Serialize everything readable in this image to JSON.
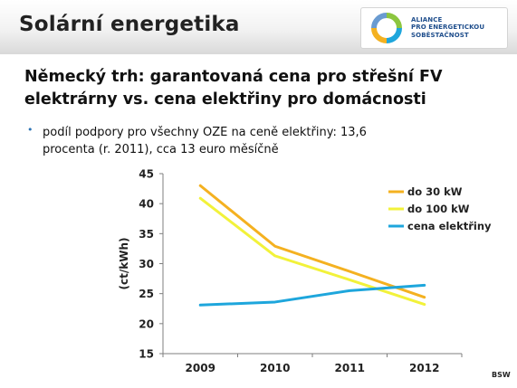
{
  "header": {
    "title": "Solární energetika"
  },
  "logo": {
    "lines": [
      "ALIANCE",
      "PRO ENERGETICKOU",
      "SOBĚSTAČNOST"
    ]
  },
  "subtitle": {
    "line1": "Německý trh: garantovaná cena pro střešní FV",
    "line2": "elektrárny vs. cena elektřiny pro domácnosti"
  },
  "bullet": {
    "line1": "podíl podpory pro všechny OZE na ceně elektřiny: 13,6",
    "line2": "procenta (r. 2011), cca 13 euro měsíčně"
  },
  "source": "BSW",
  "chart_data": {
    "type": "line",
    "x": [
      "2009",
      "2010",
      "2011",
      "2012"
    ],
    "ylabel": "(ct/kWh)",
    "ylim": [
      15,
      45
    ],
    "yticks": [
      15,
      20,
      25,
      30,
      35,
      40,
      45
    ],
    "legend_position": "top-right",
    "series": [
      {
        "name": "do 30 kW",
        "color": "#f4b120",
        "values": [
          43.0,
          32.9,
          28.7,
          24.4
        ]
      },
      {
        "name": "do 100 kW",
        "color": "#f2f23a",
        "values": [
          40.9,
          31.3,
          27.3,
          23.2
        ]
      },
      {
        "name": "cena elektřiny",
        "color": "#1ea6dc",
        "values": [
          23.1,
          23.6,
          25.5,
          26.4
        ]
      }
    ]
  }
}
